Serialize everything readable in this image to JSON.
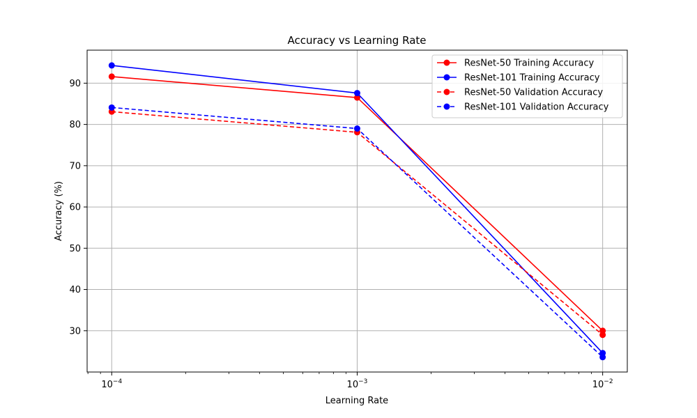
{
  "chart_data": {
    "type": "line",
    "title": "Accuracy vs Learning Rate",
    "xlabel": "Learning Rate",
    "ylabel": "Accuracy (%)",
    "x_scale": "log",
    "xlim": [
      7.94e-05,
      0.0126
    ],
    "ylim": [
      20,
      98
    ],
    "x": [
      0.0001,
      0.001,
      0.01
    ],
    "x_tick_labels": [
      {
        "value": 0.0001,
        "base": "10",
        "exp": "−4"
      },
      {
        "value": 0.001,
        "base": "10",
        "exp": "−3"
      },
      {
        "value": 0.01,
        "base": "10",
        "exp": "−2"
      }
    ],
    "y_ticks": [
      30,
      40,
      50,
      60,
      70,
      80,
      90
    ],
    "grid": true,
    "legend_position": "top-right",
    "series": [
      {
        "name": "ResNet-50 Training Accuracy",
        "values": [
          91.6,
          86.5,
          30.0
        ],
        "color": "#ff0000",
        "dashed": false
      },
      {
        "name": "ResNet-101 Training Accuracy",
        "values": [
          94.3,
          87.6,
          24.6
        ],
        "color": "#0000ff",
        "dashed": false
      },
      {
        "name": "ResNet-50 Validation Accuracy",
        "values": [
          83.1,
          78.1,
          29.0
        ],
        "color": "#ff0000",
        "dashed": true
      },
      {
        "name": "ResNet-101 Validation Accuracy",
        "values": [
          84.1,
          79.0,
          23.6
        ],
        "color": "#0000ff",
        "dashed": true
      }
    ]
  }
}
